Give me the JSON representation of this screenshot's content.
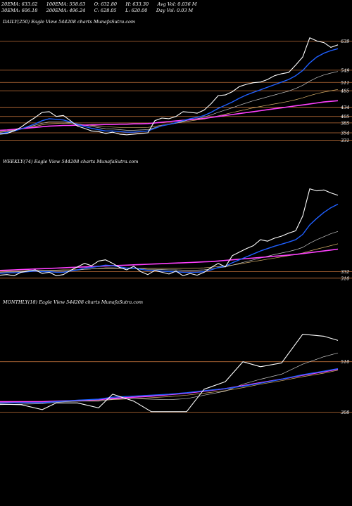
{
  "header": {
    "row1": [
      "20EMA: 633.62",
      "100EMA: 558.63",
      "O: 632.80",
      "H: 633.30",
      "Avg Vol: 0.036 M"
    ],
    "row2": [
      "30EMA: 606.18",
      "200EMA: 496.24",
      "C: 628.05",
      "L: 620.00",
      "Day Vol: 0.03 M"
    ]
  },
  "colors": {
    "background": "#000000",
    "price": "#ffffff",
    "ema_fast": "#1f5fff",
    "ema_long": "#ff40ff",
    "ema_misc": "#c8c8c8",
    "ema_mid": "#d6b06a",
    "level_line": "#c0703a"
  },
  "chart_data": [
    {
      "type": "line",
      "title": "DAILY(250) Eagle  View  544208 charts MunafaSutra.com",
      "x": [
        0,
        10,
        20,
        30,
        40,
        50,
        60,
        70,
        80,
        90,
        100,
        110,
        120,
        130,
        140,
        150,
        160,
        170,
        180,
        190,
        200,
        210,
        220,
        230,
        240,
        250,
        260,
        270,
        280,
        290,
        300,
        310,
        320,
        330,
        340,
        350,
        360,
        370,
        380,
        390,
        400,
        410,
        420,
        430,
        440,
        450,
        460,
        470,
        480
      ],
      "ylim": [
        330,
        680
      ],
      "right_labels": [
        "639",
        "549",
        "511",
        "485",
        "434",
        "405",
        "385",
        "354",
        "331"
      ],
      "levels": [
        639,
        549,
        511,
        485,
        434,
        405,
        385,
        354,
        331
      ],
      "series": [
        {
          "key": "price",
          "values": [
            350,
            352,
            360,
            372,
            388,
            402,
            418,
            420,
            405,
            408,
            392,
            375,
            368,
            360,
            358,
            352,
            356,
            350,
            348,
            350,
            352,
            354,
            392,
            400,
            398,
            405,
            420,
            418,
            415,
            425,
            445,
            470,
            472,
            482,
            498,
            505,
            510,
            512,
            520,
            532,
            538,
            542,
            565,
            590,
            650,
            640,
            635,
            620,
            628
          ]
        },
        {
          "key": "ema_fast",
          "values": [
            352,
            355,
            360,
            366,
            374,
            382,
            392,
            398,
            396,
            394,
            388,
            380,
            374,
            368,
            364,
            360,
            360,
            358,
            356,
            356,
            358,
            360,
            368,
            376,
            380,
            386,
            392,
            398,
            402,
            408,
            418,
            430,
            440,
            450,
            462,
            472,
            480,
            488,
            496,
            504,
            512,
            520,
            532,
            548,
            572,
            590,
            602,
            610,
            616
          ]
        },
        {
          "key": "ema_misc",
          "values": [
            356,
            358,
            362,
            366,
            372,
            378,
            384,
            388,
            388,
            388,
            386,
            382,
            378,
            374,
            370,
            367,
            366,
            364,
            362,
            362,
            363,
            364,
            370,
            376,
            380,
            384,
            390,
            395,
            398,
            403,
            410,
            418,
            425,
            432,
            440,
            447,
            454,
            460,
            466,
            472,
            478,
            484,
            492,
            502,
            515,
            526,
            534,
            540,
            545
          ]
        },
        {
          "key": "ema_mid",
          "values": [
            358,
            360,
            363,
            366,
            370,
            374,
            379,
            382,
            383,
            384,
            383,
            381,
            379,
            377,
            375,
            373,
            372,
            371,
            370,
            370,
            370,
            371,
            374,
            378,
            381,
            384,
            388,
            391,
            394,
            397,
            402,
            407,
            412,
            417,
            422,
            427,
            432,
            436,
            440,
            444,
            448,
            452,
            457,
            463,
            470,
            476,
            481,
            485,
            489
          ]
        },
        {
          "key": "ema_long",
          "values": [
            362,
            363,
            365,
            367,
            369,
            371,
            373,
            375,
            376,
            377,
            377,
            378,
            378,
            379,
            379,
            380,
            380,
            381,
            381,
            382,
            382,
            383,
            385,
            387,
            389,
            391,
            393,
            395,
            397,
            399,
            402,
            405,
            408,
            411,
            414,
            417,
            420,
            423,
            426,
            429,
            432,
            435,
            438,
            441,
            444,
            447,
            450,
            452,
            454
          ]
        }
      ]
    },
    {
      "type": "line",
      "title": "WEEKLY(74) Eagle  View  544208 charts MunafaSutra.com",
      "x": [
        0,
        10,
        20,
        30,
        40,
        50,
        60,
        70,
        80,
        90,
        100,
        110,
        120,
        130,
        140,
        150,
        160,
        170,
        180,
        190,
        200,
        210,
        220,
        230,
        240,
        250,
        260,
        270,
        280,
        290,
        300,
        310,
        320,
        330,
        340,
        350,
        360,
        370,
        380,
        390,
        400,
        410,
        420,
        430,
        440,
        450,
        460,
        470,
        480
      ],
      "ylim": [
        300,
        680
      ],
      "right_labels": [
        "332",
        "310"
      ],
      "levels": [
        332,
        310
      ],
      "series": [
        {
          "key": "price",
          "values": [
            320,
            322,
            318,
            330,
            334,
            338,
            326,
            330,
            318,
            322,
            336,
            348,
            360,
            352,
            368,
            372,
            360,
            346,
            338,
            350,
            332,
            322,
            336,
            330,
            324,
            334,
            318,
            326,
            320,
            330,
            346,
            360,
            348,
            386,
            398,
            410,
            420,
            440,
            435,
            445,
            452,
            462,
            470,
            520,
            612,
            605,
            608,
            598,
            590
          ]
        },
        {
          "key": "ema_fast",
          "values": [
            326,
            328,
            328,
            330,
            332,
            334,
            332,
            332,
            330,
            330,
            334,
            338,
            344,
            346,
            350,
            354,
            352,
            348,
            344,
            344,
            340,
            336,
            336,
            334,
            332,
            332,
            330,
            330,
            330,
            332,
            338,
            346,
            350,
            362,
            372,
            382,
            392,
            402,
            410,
            418,
            425,
            432,
            440,
            458,
            490,
            512,
            532,
            548,
            560
          ]
        },
        {
          "key": "ema_misc",
          "values": [
            330,
            331,
            331,
            332,
            333,
            334,
            334,
            334,
            334,
            334,
            335,
            337,
            340,
            341,
            343,
            345,
            345,
            344,
            343,
            343,
            342,
            340,
            340,
            339,
            338,
            338,
            337,
            337,
            337,
            338,
            341,
            345,
            348,
            354,
            360,
            366,
            372,
            378,
            384,
            390,
            395,
            400,
            406,
            414,
            428,
            440,
            450,
            460,
            468
          ]
        },
        {
          "key": "ema_mid",
          "values": [
            334,
            334,
            335,
            335,
            336,
            336,
            337,
            337,
            337,
            338,
            338,
            339,
            340,
            341,
            342,
            343,
            343,
            343,
            343,
            343,
            343,
            343,
            343,
            343,
            343,
            343,
            343,
            343,
            344,
            345,
            347,
            349,
            351,
            354,
            358,
            362,
            366,
            370,
            374,
            378,
            382,
            386,
            390,
            395,
            402,
            408,
            414,
            420,
            426
          ]
        },
        {
          "key": "ema_long",
          "values": [
            336,
            337,
            338,
            339,
            340,
            341,
            342,
            343,
            344,
            345,
            346,
            347,
            348,
            349,
            350,
            351,
            352,
            353,
            354,
            355,
            356,
            357,
            358,
            359,
            360,
            361,
            362,
            363,
            364,
            365,
            366,
            368,
            370,
            372,
            374,
            376,
            378,
            380,
            382,
            384,
            386,
            388,
            390,
            393,
            396,
            399,
            402,
            405,
            408
          ]
        }
      ]
    },
    {
      "type": "line",
      "title": "MONTHLY(18) Eagle  View  544208 charts MunafaSutra.com",
      "x": [
        0,
        30,
        60,
        80,
        110,
        140,
        160,
        190,
        215,
        240,
        265,
        290,
        320,
        345,
        370,
        400,
        430,
        460,
        480
      ],
      "ylim": [
        270,
        720
      ],
      "right_labels": [
        "510",
        "308"
      ],
      "levels": [
        510,
        308
      ],
      "series": [
        {
          "key": "price",
          "values": [
            340,
            338,
            318,
            345,
            345,
            325,
            380,
            352,
            310,
            310,
            310,
            400,
            430,
            510,
            490,
            505,
            620,
            612,
            595
          ]
        },
        {
          "key": "ema_fast",
          "values": [
            345,
            346,
            346,
            350,
            356,
            360,
            368,
            372,
            376,
            380,
            386,
            394,
            402,
            412,
            424,
            440,
            458,
            472,
            482
          ]
        },
        {
          "key": "ema_misc",
          "values": [
            338,
            340,
            342,
            348,
            352,
            352,
            360,
            362,
            360,
            358,
            362,
            376,
            392,
            420,
            440,
            460,
            500,
            530,
            545
          ]
        },
        {
          "key": "ema_mid",
          "values": [
            348,
            348,
            348,
            350,
            352,
            354,
            358,
            362,
            366,
            370,
            376,
            384,
            394,
            406,
            420,
            434,
            450,
            464,
            476
          ]
        },
        {
          "key": "ema_long",
          "values": [
            350,
            350,
            350,
            352,
            355,
            358,
            363,
            368,
            372,
            378,
            384,
            392,
            402,
            414,
            426,
            440,
            456,
            470,
            480
          ]
        }
      ]
    }
  ]
}
